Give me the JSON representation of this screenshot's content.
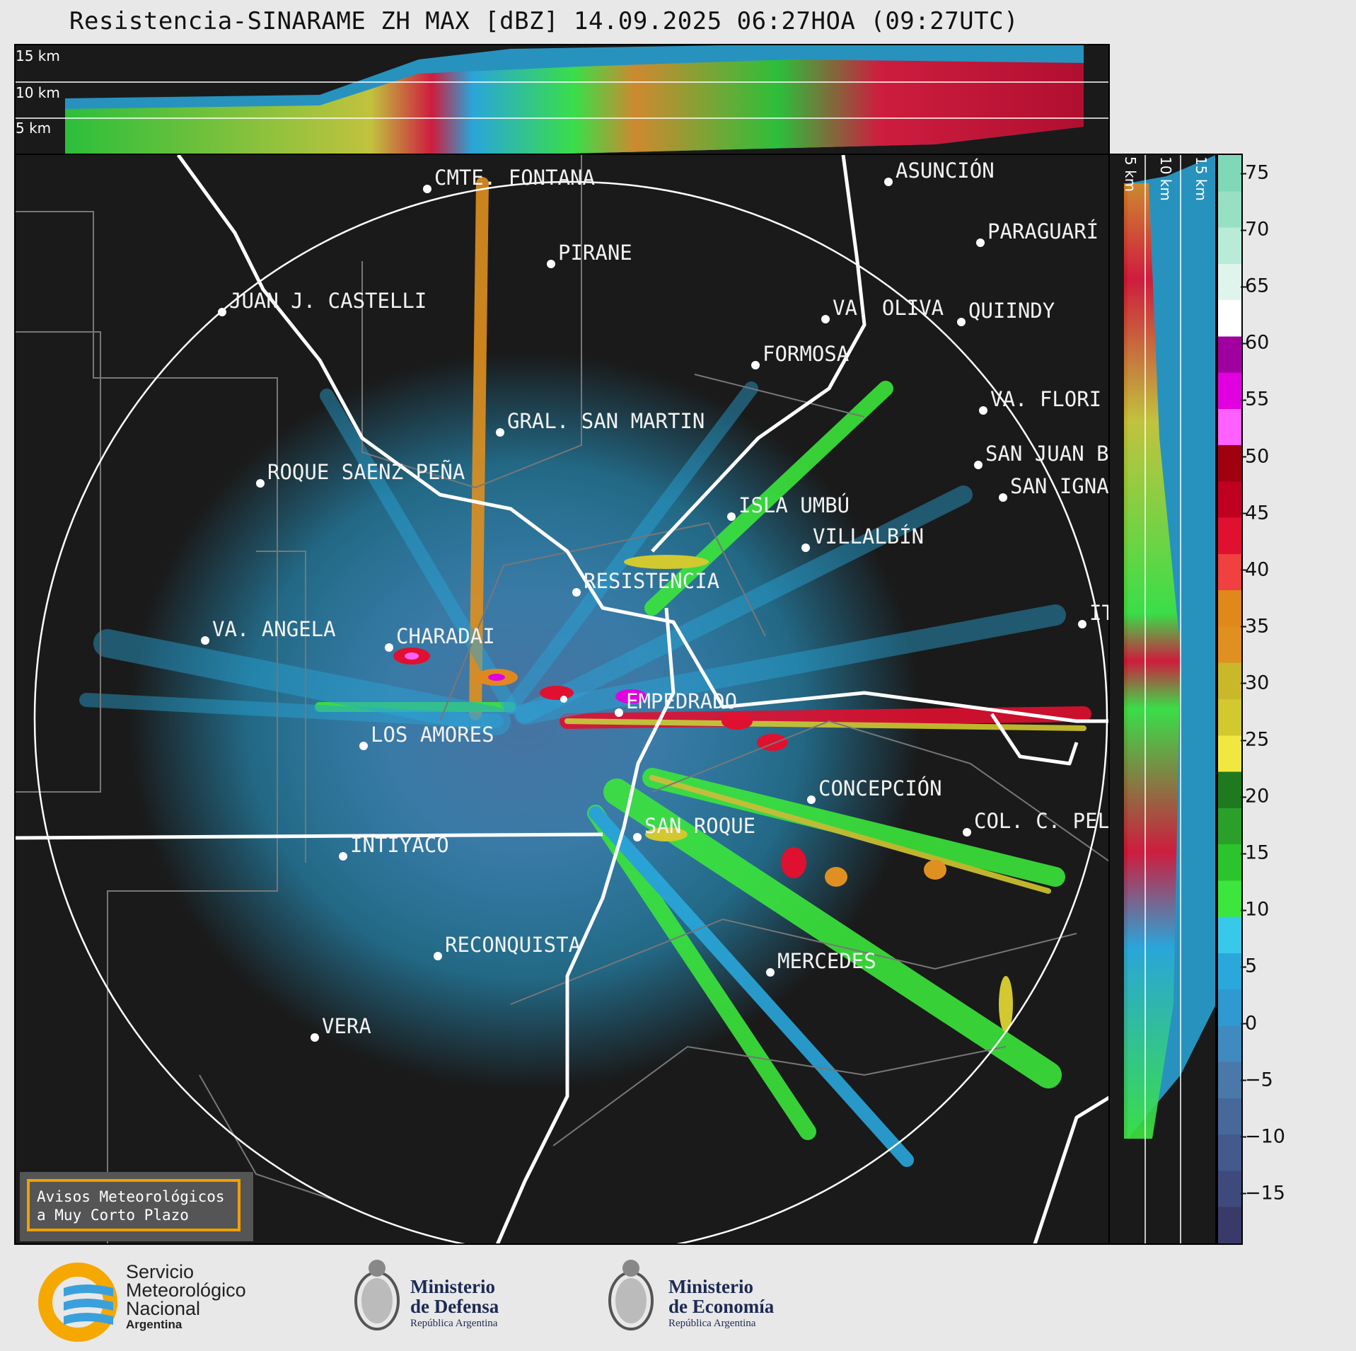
{
  "title": "Resistencia-SINARAME ZH MAX [dBZ] 14.09.2025 06:27HOA (09:27UTC)",
  "top_profile": {
    "altitude_labels": [
      "15 km",
      "10 km",
      "5 km"
    ]
  },
  "side_profile": {
    "altitude_labels": [
      "5 km",
      "10 km",
      "15 km"
    ]
  },
  "cities": [
    {
      "name": "CMTE. FONTANA"
    },
    {
      "name": "ASUNCIÓN"
    },
    {
      "name": "PARAGUARÍ"
    },
    {
      "name": "PIRANE"
    },
    {
      "name": "JUAN J. CASTELLI"
    },
    {
      "name": "VA. OLIVA"
    },
    {
      "name": "QUIINDY"
    },
    {
      "name": "FORMOSA"
    },
    {
      "name": "VA. FLORI"
    },
    {
      "name": "GRAL. SAN MARTIN"
    },
    {
      "name": "SAN JUAN B"
    },
    {
      "name": "ROQUE SAENZ PEÑA"
    },
    {
      "name": "SAN IGNA"
    },
    {
      "name": "ISLA UMBÚ"
    },
    {
      "name": "VILLALBÍN"
    },
    {
      "name": "RESISTENCIA"
    },
    {
      "name": "VA. ANGELA"
    },
    {
      "name": "CHARADAI"
    },
    {
      "name": "ITI"
    },
    {
      "name": "EMPEDRADO"
    },
    {
      "name": "LOS AMORES"
    },
    {
      "name": "CONCEPCIÓN"
    },
    {
      "name": "SAN ROQUE"
    },
    {
      "name": "COL. C. PEL"
    },
    {
      "name": "INTIYACO"
    },
    {
      "name": "RECONQUISTA"
    },
    {
      "name": "MERCEDES"
    },
    {
      "name": "VERA"
    }
  ],
  "colorbar": {
    "unit": "dBZ",
    "ticks": [
      "75",
      "70",
      "65",
      "60",
      "55",
      "50",
      "45",
      "40",
      "35",
      "30",
      "25",
      "20",
      "15",
      "10",
      "5",
      "0",
      "−5",
      "−10",
      "−15"
    ],
    "stops": [
      "#3a3a6a",
      "#3f4a7c",
      "#435a8c",
      "#46699a",
      "#4a78a8",
      "#3f8bbf",
      "#2f9ad2",
      "#2aa8dc",
      "#38c8ea",
      "#3ce63c",
      "#2cc42c",
      "#2aa02a",
      "#1f7a1f",
      "#f0e840",
      "#d2c830",
      "#c8b82a",
      "#e09020",
      "#e0881a",
      "#f04040",
      "#e01030",
      "#c00020",
      "#a00010",
      "#ff60ff",
      "#e000e0",
      "#a000a0",
      "#ffffff",
      "#e0f4ee",
      "#b8ecd8",
      "#98e0c4",
      "#80d8b8"
    ]
  },
  "warning_box": {
    "line1": "Avisos Meteorológicos",
    "line2": "a Muy Corto Plazo"
  },
  "footer": {
    "smn": {
      "line1": "Servicio",
      "line2": "Meteorológico",
      "line3": "Nacional",
      "line4": "Argentina"
    },
    "defensa": {
      "line1": "Ministerio",
      "line2": "de Defensa",
      "line3": "República Argentina"
    },
    "economia": {
      "line1": "Ministerio",
      "line2": "de Economía",
      "line3": "República Argentina"
    }
  }
}
